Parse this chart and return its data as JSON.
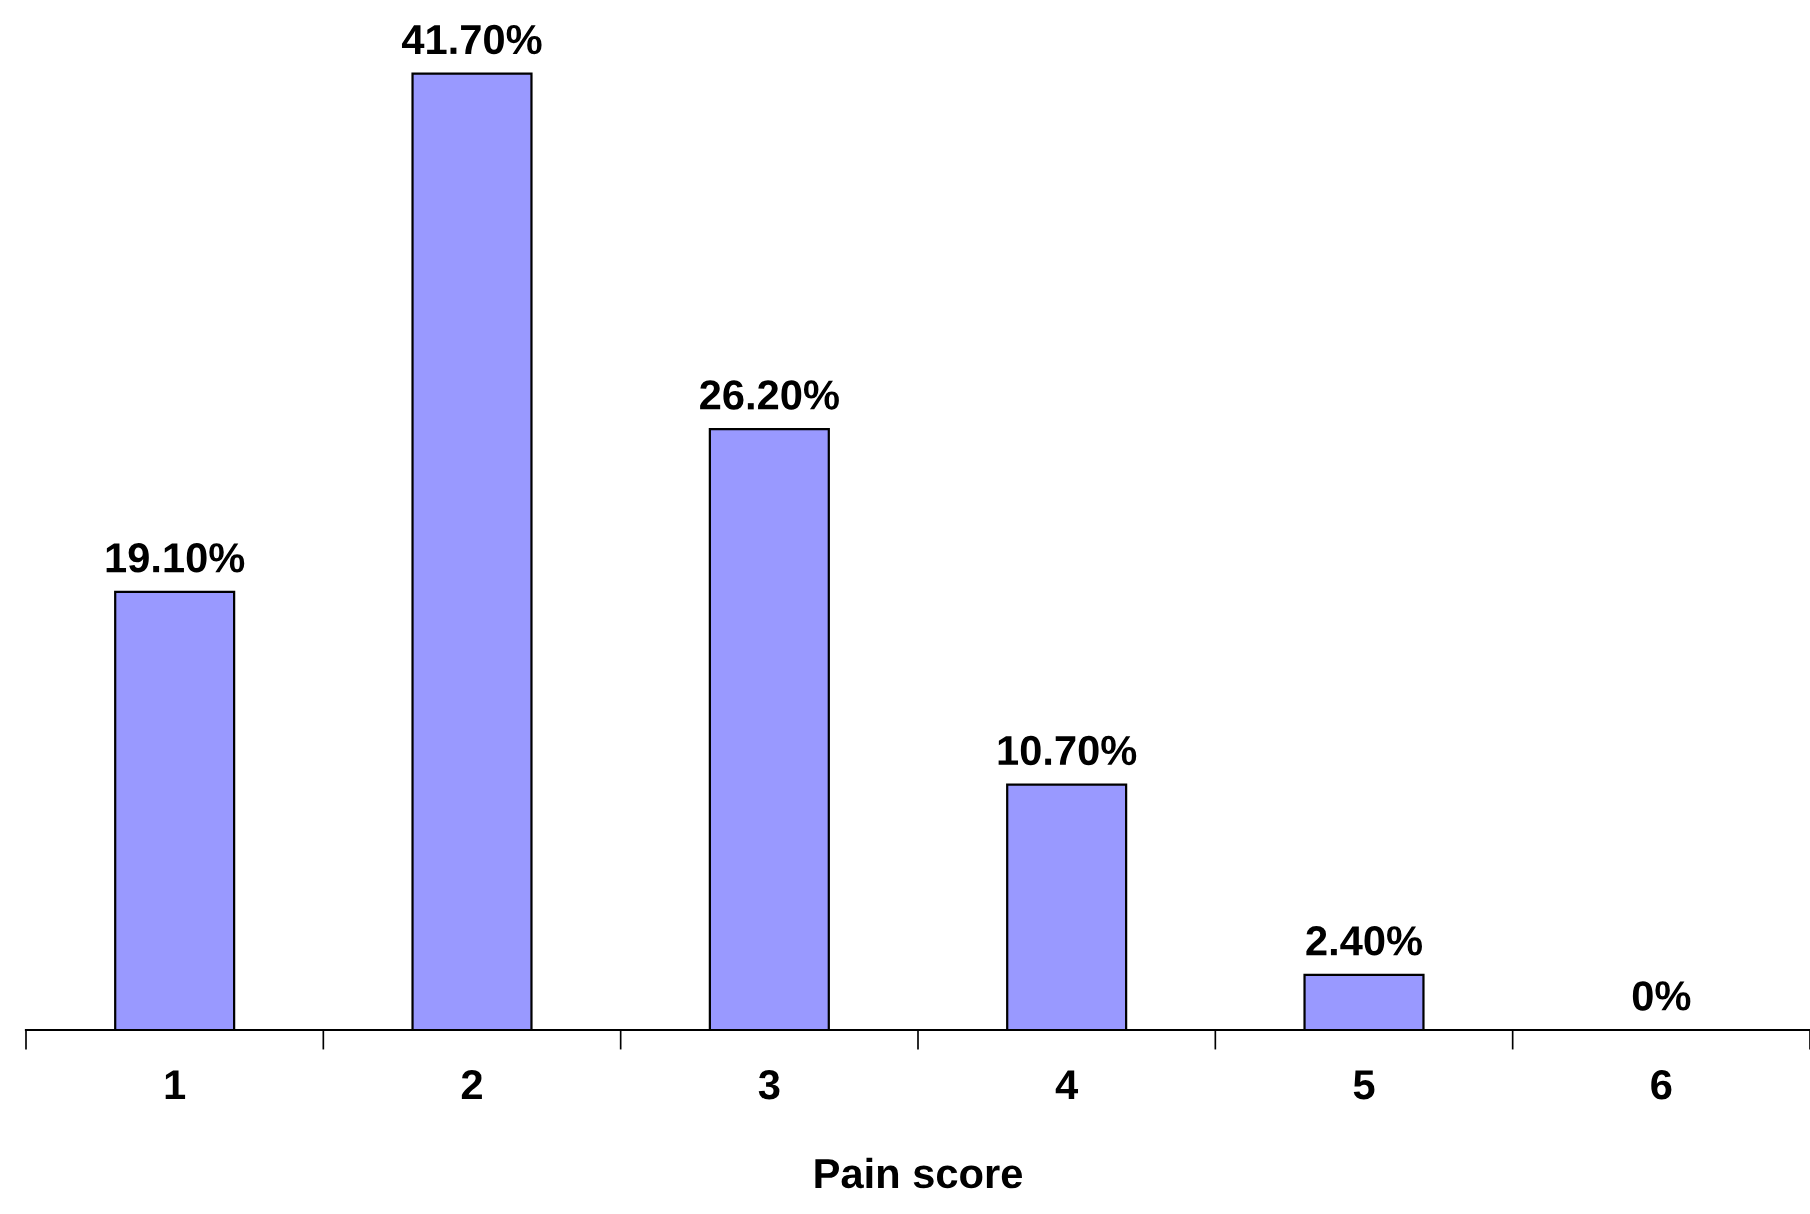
{
  "chart_data": {
    "type": "bar",
    "xlabel": "Pain score",
    "categories": [
      "1",
      "2",
      "3",
      "4",
      "5",
      "6"
    ],
    "values": [
      19.1,
      41.7,
      26.2,
      10.7,
      2.4,
      0
    ],
    "value_labels": [
      "19.10%",
      "41.70%",
      "26.20%",
      "10.70%",
      "2.40%",
      "0%"
    ],
    "color": "#9999ff",
    "grid": false,
    "legend": false
  }
}
